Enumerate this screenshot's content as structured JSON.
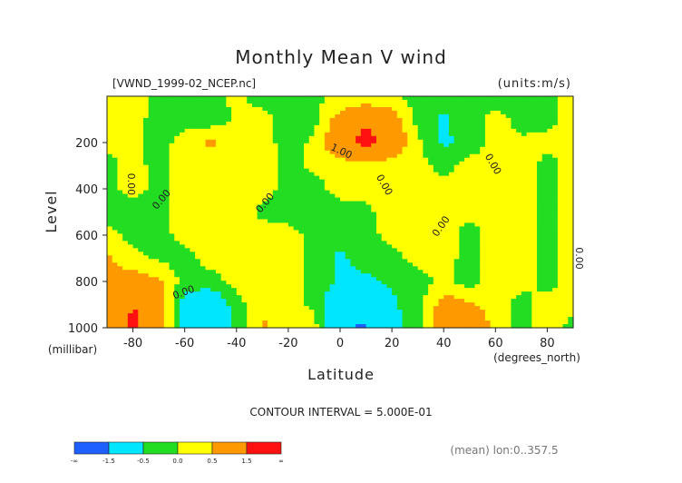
{
  "chart_data": {
    "type": "heatmap",
    "title": "Monthly Mean V wind",
    "file_label": "[VWND_1999-02_NCEP.nc]",
    "units_label": "(units:m/s)",
    "xlabel": "Latitude",
    "x_units": "(degrees_north)",
    "ylabel": "Level",
    "y_units": "(millibar)",
    "x_ticks": [
      "-80",
      "-60",
      "-40",
      "-20",
      "0",
      "20",
      "40",
      "60",
      "80"
    ],
    "y_ticks": [
      "200",
      "400",
      "600",
      "800",
      "1000"
    ],
    "xlim": [
      -90,
      90
    ],
    "ylim": [
      1000,
      0
    ],
    "contour_interval_label": "CONTOUR INTERVAL = 5.000E-01",
    "footnote": "(mean) lon:0..357.5",
    "contour_labels": [
      "0.00",
      "0.00",
      "0.00",
      "1.00",
      "0.00",
      "0.00",
      "0.00",
      "0.00",
      "0.00"
    ],
    "colorbar": {
      "labels": [
        "-∞",
        "-1.5",
        "-0.5",
        "0.0",
        "0.5",
        "1.5",
        "∞"
      ],
      "colors": [
        "#1e5fff",
        "#00e6ff",
        "#22dd22",
        "#ffff00",
        "#ff9900",
        "#ff1111"
      ]
    },
    "latitudes": [
      -90,
      -80,
      -70,
      -60,
      -50,
      -40,
      -30,
      -20,
      -10,
      0,
      10,
      20,
      30,
      40,
      50,
      60,
      70,
      80,
      90
    ],
    "levels": [
      10,
      100,
      200,
      300,
      400,
      500,
      600,
      700,
      800,
      900,
      1000
    ],
    "values": [
      [
        0.1,
        0.2,
        -0.2,
        -0.2,
        -0.2,
        0.1,
        -0.2,
        -0.2,
        -0.1,
        0.1,
        0.1,
        0.1,
        -0.2,
        -0.2,
        -0.2,
        -0.2,
        -0.2,
        -0.1,
        0.1
      ],
      [
        0.2,
        0.3,
        -0.3,
        -0.2,
        -0.3,
        0.1,
        0.2,
        -0.3,
        -0.2,
        0.8,
        1.4,
        0.9,
        -0.2,
        -0.6,
        -0.2,
        0.2,
        -0.2,
        -0.2,
        0.2
      ],
      [
        0.2,
        0.1,
        -0.2,
        0.2,
        0.6,
        0.2,
        0.2,
        -0.2,
        0.1,
        1.2,
        1.8,
        1.1,
        0.1,
        -0.6,
        -0.3,
        0.2,
        0.1,
        0.2,
        0.2
      ],
      [
        -0.2,
        0.2,
        -0.2,
        0.2,
        0.2,
        0.3,
        0.2,
        -0.1,
        0.1,
        0.2,
        0.3,
        0.2,
        0.2,
        -0.2,
        0.2,
        0.1,
        0.3,
        -0.2,
        0.2
      ],
      [
        -0.2,
        0.2,
        -0.2,
        0.2,
        0.2,
        0.2,
        0.2,
        -0.2,
        -0.2,
        0.2,
        0.1,
        0.2,
        0.3,
        0.2,
        0.3,
        0.2,
        0.2,
        -0.2,
        0.2
      ],
      [
        -0.2,
        -0.2,
        -0.2,
        0.3,
        0.3,
        0.2,
        -0.1,
        -0.2,
        -0.3,
        -0.2,
        -0.1,
        0.2,
        0.2,
        0.2,
        0.1,
        0.2,
        0.2,
        -0.2,
        0.2
      ],
      [
        0.2,
        -0.2,
        -0.2,
        0.2,
        0.2,
        0.2,
        0.2,
        0.2,
        -0.2,
        -0.3,
        -0.2,
        0.2,
        0.2,
        0.2,
        -0.2,
        0.2,
        0.2,
        -0.2,
        0.2
      ],
      [
        0.6,
        0.2,
        -0.1,
        -0.2,
        0.2,
        0.2,
        0.2,
        0.3,
        -0.2,
        -0.6,
        -0.3,
        -0.2,
        0.2,
        0.2,
        -0.2,
        0.2,
        0.2,
        -0.2,
        0.2
      ],
      [
        0.6,
        0.8,
        0.6,
        -0.2,
        -0.2,
        0.2,
        0.2,
        0.2,
        -0.2,
        -0.6,
        -0.6,
        -0.4,
        -0.2,
        0.1,
        -0.2,
        0.2,
        0.2,
        -0.2,
        0.2
      ],
      [
        0.6,
        1.5,
        0.8,
        -0.8,
        -1.2,
        -0.2,
        0.4,
        0.2,
        -0.1,
        -1.1,
        -1.2,
        -0.6,
        -0.2,
        0.8,
        0.6,
        0.2,
        -0.2,
        0.2,
        0.2
      ],
      [
        0.6,
        1.8,
        0.8,
        -0.8,
        -1.6,
        -0.3,
        0.6,
        0.3,
        0.2,
        -1.4,
        -1.6,
        -0.8,
        -0.2,
        0.8,
        1.2,
        0.3,
        -0.2,
        0.3,
        -0.2
      ]
    ]
  }
}
